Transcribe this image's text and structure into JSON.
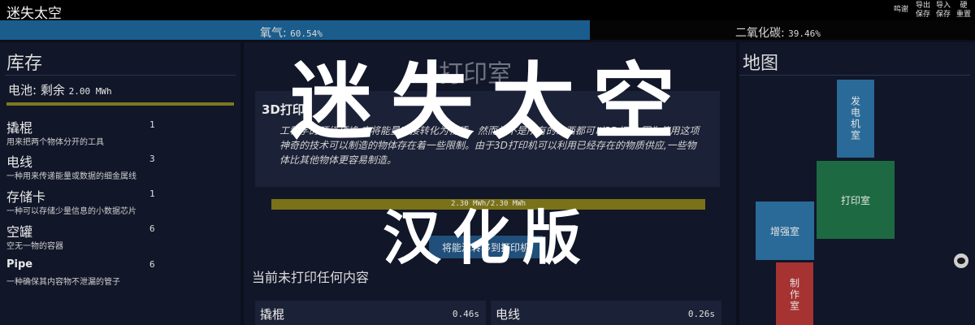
{
  "header": {
    "title": "迷失太空",
    "buttons": {
      "thanks": "鸣谢",
      "export": [
        "导出",
        "保存"
      ],
      "import": [
        "导入",
        "保存"
      ],
      "reset": [
        "硬",
        "重置"
      ]
    }
  },
  "atmosphere": {
    "oxygen_label": "氧气:",
    "oxygen_value": "60.54%",
    "oxygen_fraction": 0.6054,
    "co2_label": "二氧化碳:",
    "co2_value": "39.46%"
  },
  "inventory": {
    "header": "库存",
    "battery_label": "电池: 剩余",
    "battery_value": "2.00 MWh",
    "items": [
      {
        "name": "撬棍",
        "count": "1",
        "desc": "用来把两个物体分开的工具"
      },
      {
        "name": "电线",
        "count": "3",
        "desc": "一种用来传递能量或数据的细金属线"
      },
      {
        "name": "存储卡",
        "count": "1",
        "desc": "一种可以存储少量信息的小数据芯片"
      },
      {
        "name": "空罐",
        "count": "6",
        "desc": "空无一物的容器"
      },
      {
        "name": "Pipe",
        "count": "6",
        "desc": "一种确保其内容物不泄漏的管子"
      }
    ]
  },
  "printer": {
    "title": "打印室",
    "heading": "3D打印",
    "description": "工程学的顶级顶峰,它将能量直接转化为物质。然而并不是所有的东西都可以3D打印,因为使用这项神奇的技术可以制造的物体存在着一些限制。由于3D打印机可以利用已经存在的物质供应,一些物体比其他物体更容易制造。",
    "energy_label": "2.30 MWh/2.30 MWh",
    "energy_fraction": 1.0,
    "transfer_button": "将能源转移到打印机",
    "status": "当前未打印任何内容",
    "recipes": [
      {
        "name": "撬棍",
        "time": "0.46s"
      },
      {
        "name": "电线",
        "time": "0.26s"
      }
    ]
  },
  "map": {
    "header": "地图",
    "rooms": {
      "generator": "发电机室",
      "printer": "打印室",
      "augment": "增强室",
      "fab": "制作室"
    }
  },
  "overlay": {
    "title": "迷失太空",
    "subtitle": "汉化版"
  },
  "colors": {
    "oxygen": "#1a5c8c",
    "energy": "#7a7218",
    "generator_room": "#2a6a98",
    "printer_room": "#1d6a42",
    "fab_room": "#a63232"
  }
}
